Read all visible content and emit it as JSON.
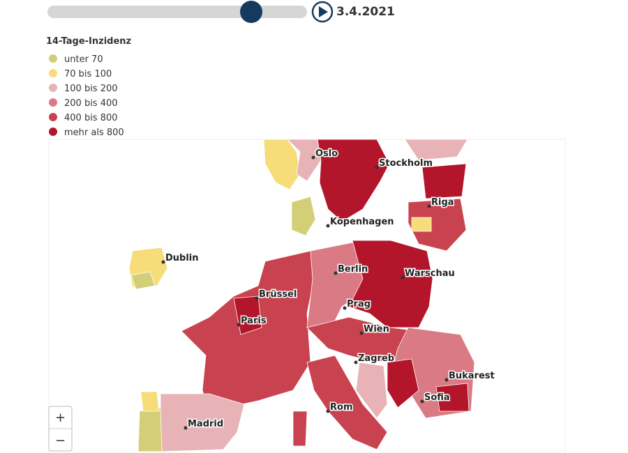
{
  "slider": {
    "date": "3.4.2021"
  },
  "legend": {
    "title": "14-Tage-Inzidenz",
    "items": [
      {
        "label": "unter 70",
        "color": "#d3cf78"
      },
      {
        "label": "70 bis 100",
        "color": "#f7dc7a"
      },
      {
        "label": "100 bis 200",
        "color": "#e8b3b6"
      },
      {
        "label": "200 bis 400",
        "color": "#d97a84"
      },
      {
        "label": "400 bis 800",
        "color": "#c9424f"
      },
      {
        "label": "mehr als 800",
        "color": "#b3152a"
      }
    ]
  },
  "cities": [
    "Oslo",
    "Stockholm",
    "Riga",
    "Kopenhagen",
    "Dublin",
    "Berlin",
    "Warschau",
    "Brüssel",
    "Prag",
    "Paris",
    "Wien",
    "Zagreb",
    "Bukarest",
    "Sofia",
    "Rom",
    "Madrid"
  ],
  "zoom": {
    "in": "+",
    "out": "−"
  }
}
